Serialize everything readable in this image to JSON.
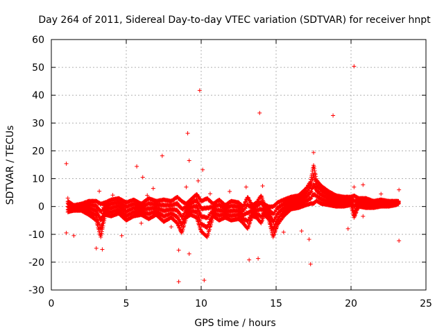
{
  "chart_data": {
    "type": "scatter",
    "title": "Day 264 of 2011, Sidereal Day-to-day VTEC variation (SDTVAR) for receiver hnpt",
    "xlabel": "GPS time / hours",
    "ylabel": "SDTVAR / TECUs",
    "xlim": [
      0,
      25
    ],
    "ylim": [
      -30,
      60
    ],
    "x_ticks": [
      0,
      5,
      10,
      15,
      20,
      25
    ],
    "y_ticks": [
      -30,
      -20,
      -10,
      0,
      10,
      20,
      30,
      40,
      50,
      60
    ],
    "grid": true,
    "marker": "plus",
    "color": "#ff0000",
    "series": [
      {
        "name": "SDTVAR",
        "points": [
          [
            1.0,
            15.4
          ],
          [
            1.0,
            -9.5
          ],
          [
            1.1,
            3.0
          ],
          [
            1.5,
            -10.5
          ],
          [
            3.0,
            -15.0
          ],
          [
            3.2,
            5.5
          ],
          [
            3.4,
            -15.4
          ],
          [
            4.1,
            4.1
          ],
          [
            4.7,
            -10.5
          ],
          [
            5.7,
            14.4
          ],
          [
            6.0,
            -6.0
          ],
          [
            6.1,
            10.5
          ],
          [
            6.4,
            4.0
          ],
          [
            6.8,
            6.5
          ],
          [
            7.4,
            18.2
          ],
          [
            8.0,
            -7.3
          ],
          [
            8.5,
            -15.7
          ],
          [
            8.5,
            -27.0
          ],
          [
            8.8,
            -4.5
          ],
          [
            9.0,
            7.0
          ],
          [
            9.1,
            26.3
          ],
          [
            9.2,
            16.5
          ],
          [
            9.2,
            -17.0
          ],
          [
            9.8,
            9.2
          ],
          [
            9.9,
            41.7
          ],
          [
            10.1,
            13.2
          ],
          [
            10.2,
            -26.5
          ],
          [
            10.6,
            4.6
          ],
          [
            11.9,
            5.4
          ],
          [
            12.3,
            -4.5
          ],
          [
            13.0,
            7.0
          ],
          [
            13.2,
            -19.2
          ],
          [
            13.8,
            -18.7
          ],
          [
            13.9,
            33.6
          ],
          [
            14.1,
            7.4
          ],
          [
            15.5,
            -9.2
          ],
          [
            16.7,
            -8.8
          ],
          [
            17.2,
            -11.8
          ],
          [
            17.3,
            -20.7
          ],
          [
            17.5,
            19.4
          ],
          [
            17.7,
            7.0
          ],
          [
            18.8,
            32.7
          ],
          [
            19.8,
            -8.0
          ],
          [
            20.2,
            50.4
          ],
          [
            20.2,
            7.0
          ],
          [
            20.8,
            -3.5
          ],
          [
            20.8,
            7.8
          ],
          [
            21.2,
            1.0
          ],
          [
            22.0,
            4.5
          ],
          [
            23.2,
            6.0
          ],
          [
            23.2,
            -12.3
          ]
        ],
        "band": [
          [
            1.1,
            2.0,
            -2.0
          ],
          [
            1.5,
            0.5,
            -1.5
          ],
          [
            2.0,
            1.0,
            -1.5
          ],
          [
            2.5,
            2.0,
            -3.0
          ],
          [
            3.0,
            2.0,
            -5.0
          ],
          [
            3.3,
            1.0,
            -11.0
          ],
          [
            3.6,
            1.5,
            -3.0
          ],
          [
            4.0,
            2.5,
            -3.5
          ],
          [
            4.5,
            3.0,
            -2.5
          ],
          [
            5.0,
            1.5,
            -5.0
          ],
          [
            5.5,
            2.5,
            -3.5
          ],
          [
            6.0,
            1.0,
            -3.0
          ],
          [
            6.5,
            3.0,
            -4.5
          ],
          [
            7.0,
            2.0,
            -3.0
          ],
          [
            7.5,
            2.5,
            -5.5
          ],
          [
            8.0,
            2.0,
            -4.0
          ],
          [
            8.4,
            3.5,
            -6.0
          ],
          [
            8.7,
            2.0,
            -9.5
          ],
          [
            9.0,
            1.0,
            -4.0
          ],
          [
            9.3,
            2.5,
            -3.0
          ],
          [
            9.7,
            4.5,
            -4.0
          ],
          [
            10.0,
            2.0,
            -9.0
          ],
          [
            10.4,
            3.0,
            -11.0
          ],
          [
            10.8,
            1.0,
            -3.5
          ],
          [
            11.2,
            2.5,
            -5.0
          ],
          [
            11.6,
            0.5,
            -4.0
          ],
          [
            12.0,
            2.0,
            -5.0
          ],
          [
            12.5,
            1.5,
            -4.5
          ],
          [
            12.8,
            0.0,
            -6.0
          ],
          [
            13.1,
            3.5,
            -8.0
          ],
          [
            13.4,
            0.5,
            -3.5
          ],
          [
            13.7,
            1.5,
            -4.0
          ],
          [
            14.0,
            4.0,
            -6.0
          ],
          [
            14.2,
            1.0,
            -3.0
          ],
          [
            14.5,
            0.0,
            -4.5
          ],
          [
            14.8,
            0.0,
            -11.0
          ],
          [
            15.1,
            1.5,
            -6.5
          ],
          [
            15.5,
            2.5,
            -3.5
          ],
          [
            16.0,
            3.5,
            -1.0
          ],
          [
            16.5,
            4.0,
            -0.5
          ],
          [
            17.0,
            6.5,
            0.5
          ],
          [
            17.3,
            9.0,
            1.0
          ],
          [
            17.5,
            15.0,
            1.0
          ],
          [
            17.7,
            9.5,
            2.0
          ],
          [
            18.0,
            7.5,
            1.0
          ],
          [
            18.5,
            5.5,
            0.5
          ],
          [
            19.0,
            4.0,
            0.0
          ],
          [
            19.5,
            3.5,
            0.0
          ],
          [
            20.0,
            3.5,
            0.5
          ],
          [
            20.2,
            4.0,
            -4.0
          ],
          [
            20.5,
            3.0,
            0.0
          ],
          [
            21.0,
            3.0,
            -0.5
          ],
          [
            21.5,
            2.0,
            -0.5
          ],
          [
            22.0,
            2.5,
            0.0
          ],
          [
            22.5,
            2.0,
            0.0
          ],
          [
            23.0,
            2.0,
            0.5
          ],
          [
            23.2,
            2.0,
            1.0
          ]
        ]
      }
    ]
  }
}
